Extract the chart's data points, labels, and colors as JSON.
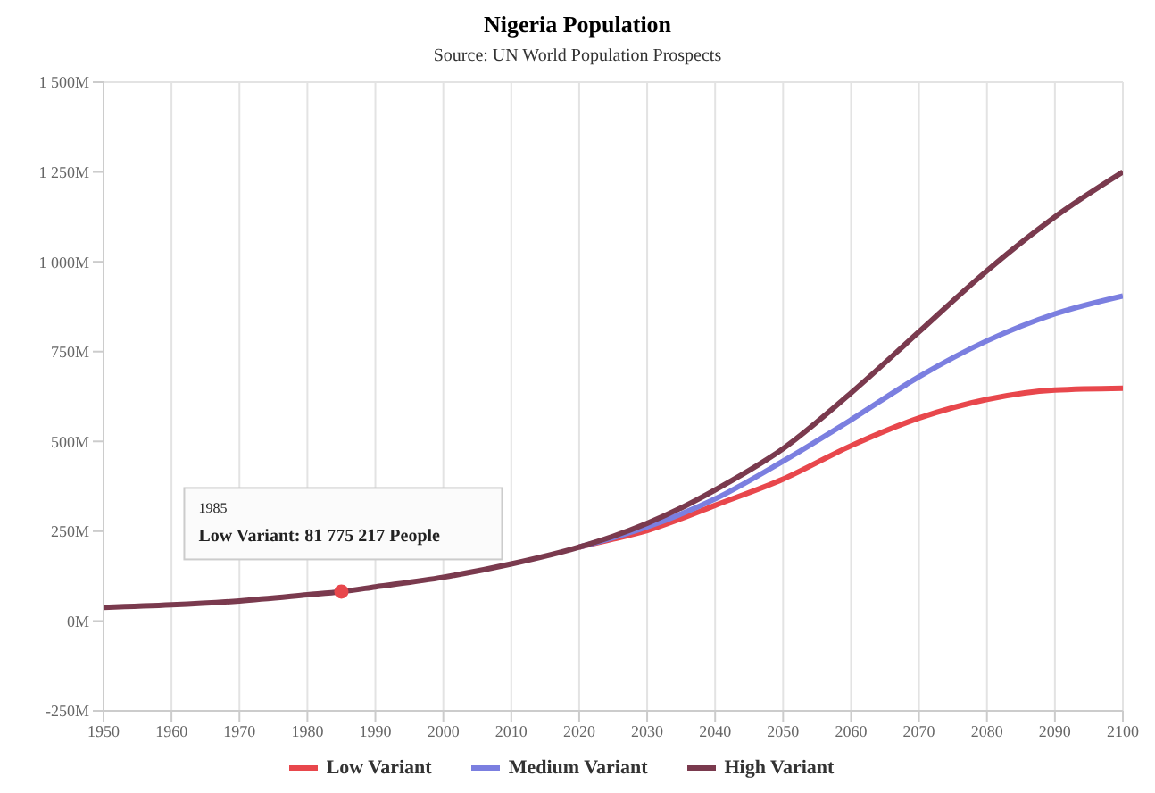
{
  "chart_data": {
    "type": "line",
    "title": "Nigeria Population",
    "subtitle": "Source: UN World Population Prospects",
    "x": [
      1950,
      1960,
      1970,
      1980,
      1985,
      1990,
      2000,
      2010,
      2020,
      2025,
      2030,
      2035,
      2040,
      2050,
      2060,
      2070,
      2080,
      2090,
      2100
    ],
    "series": [
      {
        "name": "Low Variant",
        "color": "#e8474c",
        "values": [
          null,
          null,
          null,
          null,
          null,
          null,
          null,
          null,
          206,
          228,
          252,
          285,
          322,
          395,
          488,
          565,
          617,
          643,
          648
        ]
      },
      {
        "name": "Medium Variant",
        "color": "#7b7fe0",
        "values": [
          null,
          null,
          null,
          null,
          null,
          null,
          null,
          null,
          206,
          232,
          262,
          298,
          340,
          445,
          560,
          680,
          780,
          855,
          905
        ]
      },
      {
        "name": "High Variant",
        "color": "#7a3a4e",
        "values": [
          38,
          45,
          56,
          73,
          82,
          95,
          122,
          159,
          206,
          236,
          272,
          315,
          365,
          480,
          635,
          805,
          975,
          1125,
          1250
        ]
      }
    ],
    "xlim": [
      1950,
      2100
    ],
    "xticks": [
      1950,
      1960,
      1970,
      1980,
      1990,
      2000,
      2010,
      2020,
      2030,
      2040,
      2050,
      2060,
      2070,
      2080,
      2090,
      2100
    ],
    "ylim": [
      -250,
      1500
    ],
    "yticks": [
      {
        "value": -250,
        "label": "-250M"
      },
      {
        "value": 0,
        "label": "0M"
      },
      {
        "value": 250,
        "label": "250M"
      },
      {
        "value": 500,
        "label": "500M"
      },
      {
        "value": 750,
        "label": "750M"
      },
      {
        "value": 1000,
        "label": "1 000M"
      },
      {
        "value": 1250,
        "label": "1 250M"
      },
      {
        "value": 1500,
        "label": "1 500M"
      }
    ],
    "annotations": [
      {
        "text": "1985\nLow Variant: 81 775 217 People",
        "x": 1985,
        "y": 82
      }
    ],
    "grid": true,
    "legend": "bottom",
    "marker": "none",
    "line_style": "solid"
  }
}
